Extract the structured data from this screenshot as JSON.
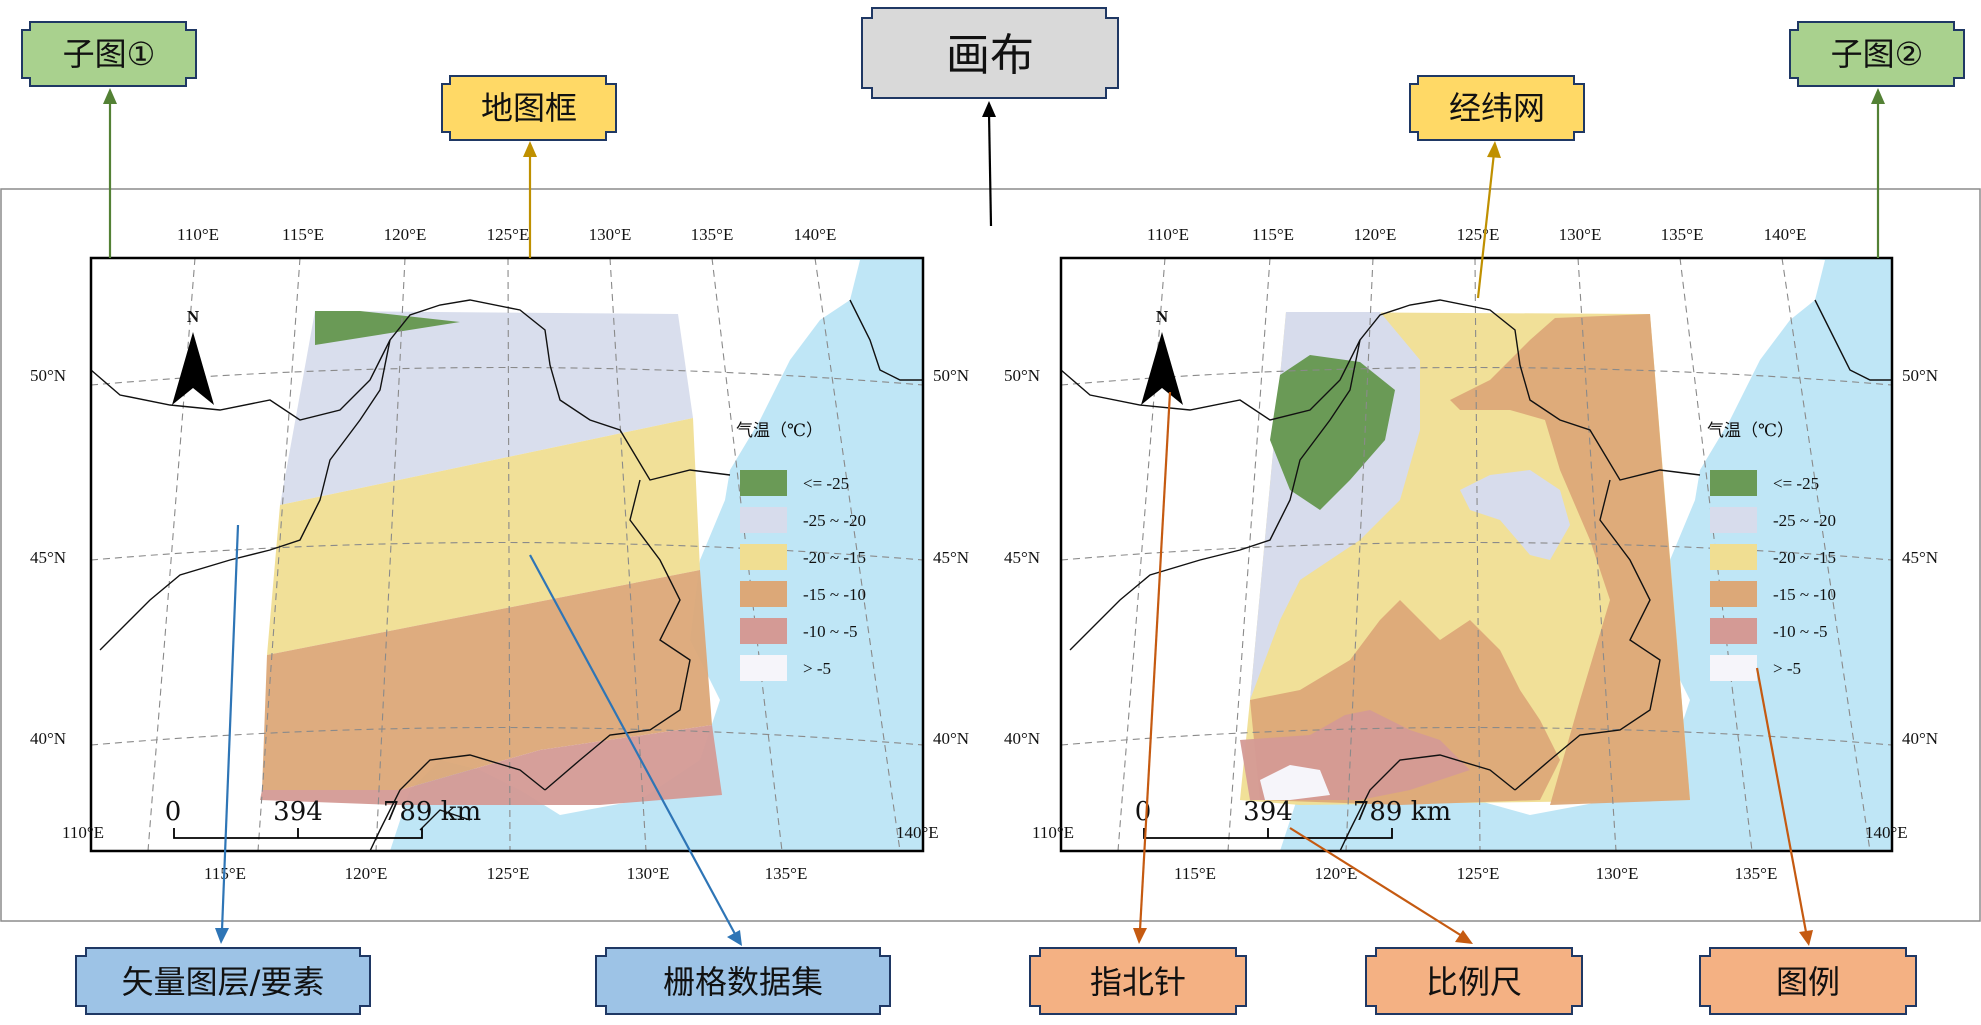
{
  "callouts": {
    "canvas": "画布",
    "subplot1": "子图①",
    "subplot2": "子图②",
    "map_frame": "地图框",
    "graticule": "经纬网",
    "vector_layer": "矢量图层/要素",
    "raster_dataset": "栅格数据集",
    "north_arrow": "指北针",
    "scale_bar": "比例尺",
    "legend": "图例"
  },
  "maps": {
    "top_lon_labels": [
      "110°E",
      "115°E",
      "120°E",
      "125°E",
      "130°E",
      "135°E",
      "140°E"
    ],
    "bottom_lon_labels": [
      "115°E",
      "120°E",
      "125°E",
      "130°E",
      "135°E"
    ],
    "corner_left": "110°E",
    "corner_right": "140°E",
    "lat_labels": [
      "50°N",
      "45°N",
      "40°N"
    ],
    "north": "N",
    "scale": {
      "v0": "0",
      "v1": "394",
      "v2": "789 km"
    },
    "legend": {
      "title": "气温（℃）",
      "classes": [
        {
          "label": "<= -25",
          "color": "#6a9a56"
        },
        {
          "label": "-25 ~ -20",
          "color": "#d7dcec"
        },
        {
          "label": "-20 ~ -15",
          "color": "#f0de92"
        },
        {
          "label": "-15 ~ -10",
          "color": "#dca878"
        },
        {
          "label": "-10 ~ -5",
          "color": "#d49a95"
        },
        {
          "label": "> -5",
          "color": "#f6f5fa"
        }
      ]
    }
  },
  "colors": {
    "sea": "#bfe6f6",
    "green_box": "#a9d18e",
    "yellow_box": "#ffd966",
    "blue_box": "#9dc3e6",
    "orange_box": "#f4b183",
    "gray_box": "#d9d9d9",
    "green_arrow": "#538135",
    "yellow_arrow": "#bf9000",
    "blue_arrow": "#2e75b6",
    "orange_arrow": "#c55a11"
  }
}
